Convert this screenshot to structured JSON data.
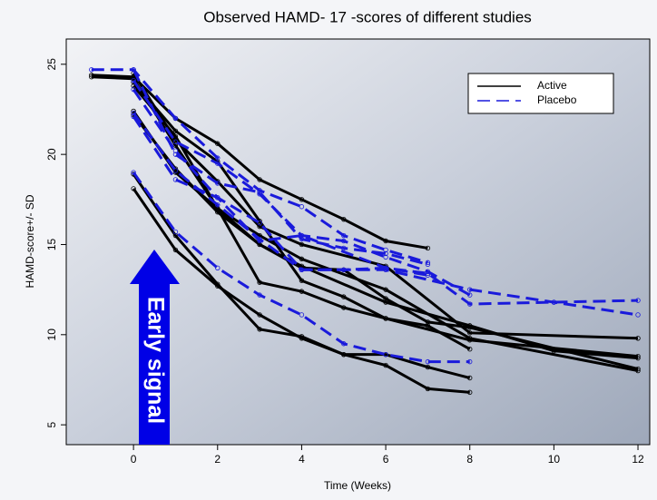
{
  "chart_data": {
    "type": "line",
    "title": "Observed HAMD- 17   -scores of different studies",
    "x_label": "Time (Weeks)",
    "y_label": "HAMD-score+/- SD",
    "annotation": "Early signal",
    "xlim": [
      -1.6,
      12.28
    ],
    "ylim": [
      3.9,
      26.4
    ],
    "xticks": [
      0,
      2,
      4,
      6,
      8,
      10,
      12
    ],
    "yticks": [
      5,
      10,
      15,
      20,
      25
    ],
    "legend": "upper right",
    "series": [
      {
        "name": "Active",
        "color": "#000000",
        "dashed": false,
        "x": [
          -1,
          0,
          1,
          2,
          3,
          4,
          5,
          6,
          7
        ],
        "values": [
          24.4,
          24.3,
          22,
          20.6,
          18.6,
          17.5,
          16.4,
          15.2,
          14.8
        ]
      },
      {
        "name": "Active",
        "color": "#000000",
        "dashed": false,
        "x": [
          -1,
          0,
          1,
          2,
          3,
          4,
          5,
          6,
          7,
          8,
          12
        ],
        "values": [
          24.3,
          24.2,
          20.5,
          17,
          15,
          13.7,
          13.6,
          12,
          10.7,
          10.4,
          8.1
        ]
      },
      {
        "name": "Active",
        "color": "#000000",
        "dashed": false,
        "x": [
          0,
          1,
          2,
          3,
          4,
          5,
          6,
          8,
          12
        ],
        "values": [
          24,
          21.3,
          19.6,
          16.3,
          13,
          12.1,
          10.9,
          9.7,
          8.8
        ]
      },
      {
        "name": "Active",
        "color": "#000000",
        "dashed": false,
        "x": [
          0,
          1,
          2,
          3,
          4,
          6,
          8,
          10,
          12
        ],
        "values": [
          22.2,
          19.2,
          16.8,
          15,
          13.8,
          11.8,
          10.5,
          9.1,
          8.7
        ]
      },
      {
        "name": "Active",
        "color": "#000000",
        "dashed": false,
        "x": [
          0,
          1,
          2,
          3,
          4,
          6,
          8,
          12
        ],
        "values": [
          24.5,
          20.8,
          18.5,
          16,
          15,
          13.8,
          10.1,
          9.8
        ]
      },
      {
        "name": "Active",
        "color": "#000000",
        "dashed": false,
        "x": [
          0,
          1,
          2,
          3,
          4,
          5,
          6,
          7,
          8
        ],
        "values": [
          23.8,
          21,
          17,
          12.9,
          12.4,
          11.5,
          10.9,
          10.5,
          9.2
        ]
      },
      {
        "name": "Active",
        "color": "#000000",
        "dashed": false,
        "x": [
          0,
          1,
          2,
          3,
          4,
          5,
          6,
          7,
          8
        ],
        "values": [
          18.1,
          14.7,
          12.7,
          11.1,
          9.8,
          8.9,
          8.9,
          8.2,
          7.6
        ]
      },
      {
        "name": "Active",
        "color": "#000000",
        "dashed": false,
        "x": [
          0,
          1,
          2,
          3,
          4,
          5,
          6,
          7,
          8
        ],
        "values": [
          18.9,
          15.5,
          12.8,
          10.3,
          9.9,
          8.9,
          8.3,
          7.0,
          6.8
        ]
      },
      {
        "name": "Active",
        "color": "#000000",
        "dashed": false,
        "x": [
          0,
          1,
          2,
          3,
          4,
          6,
          8,
          12
        ],
        "values": [
          22.4,
          19,
          17,
          15.5,
          14.2,
          12.5,
          9.8,
          8
        ]
      },
      {
        "name": "Placebo",
        "color": "#1a1adb",
        "dashed": true,
        "x": [
          -1,
          0,
          1,
          2,
          3,
          4,
          5,
          6,
          7
        ],
        "values": [
          24.7,
          24.7,
          22,
          19.8,
          18,
          17.1,
          15.5,
          14.7,
          14.0
        ]
      },
      {
        "name": "Placebo",
        "color": "#1a1adb",
        "dashed": true,
        "x": [
          0,
          1,
          2,
          3,
          4,
          5,
          6,
          7,
          8
        ],
        "values": [
          24.1,
          20.7,
          19.5,
          17.8,
          15.5,
          15.2,
          14.3,
          13.5,
          12.2
        ]
      },
      {
        "name": "Placebo",
        "color": "#1a1adb",
        "dashed": true,
        "x": [
          0,
          1,
          2,
          3,
          4,
          6,
          8,
          10,
          12
        ],
        "values": [
          23.6,
          20.2,
          17.6,
          16.2,
          13.6,
          13.6,
          12.5,
          11.8,
          11.1
        ]
      },
      {
        "name": "Placebo",
        "color": "#1a1adb",
        "dashed": true,
        "x": [
          0,
          1,
          2,
          3,
          4,
          5,
          6,
          7,
          8,
          10,
          12
        ],
        "values": [
          22.3,
          19.1,
          17.2,
          15.3,
          13.6,
          13.6,
          13.7,
          13.4,
          11.7,
          11.8,
          11.9
        ]
      },
      {
        "name": "Placebo",
        "color": "#1a1adb",
        "dashed": true,
        "x": [
          0,
          1,
          2,
          3,
          4,
          6,
          7
        ],
        "values": [
          22.1,
          18.6,
          17.6,
          15.2,
          15.5,
          13.7,
          13.3
        ]
      },
      {
        "name": "Placebo",
        "color": "#1a1adb",
        "dashed": true,
        "x": [
          0,
          1,
          2,
          3,
          4,
          5,
          6,
          7,
          8
        ],
        "values": [
          19.0,
          15.7,
          13.7,
          12.2,
          11.1,
          9.5,
          8.9,
          8.5,
          8.5
        ]
      },
      {
        "name": "Placebo",
        "color": "#1a1adb",
        "dashed": true,
        "x": [
          0,
          1,
          2,
          3,
          4,
          5,
          6,
          7
        ],
        "values": [
          24.7,
          20,
          18.4,
          17.9,
          15.3,
          14.8,
          14.5,
          13.9
        ]
      }
    ]
  }
}
